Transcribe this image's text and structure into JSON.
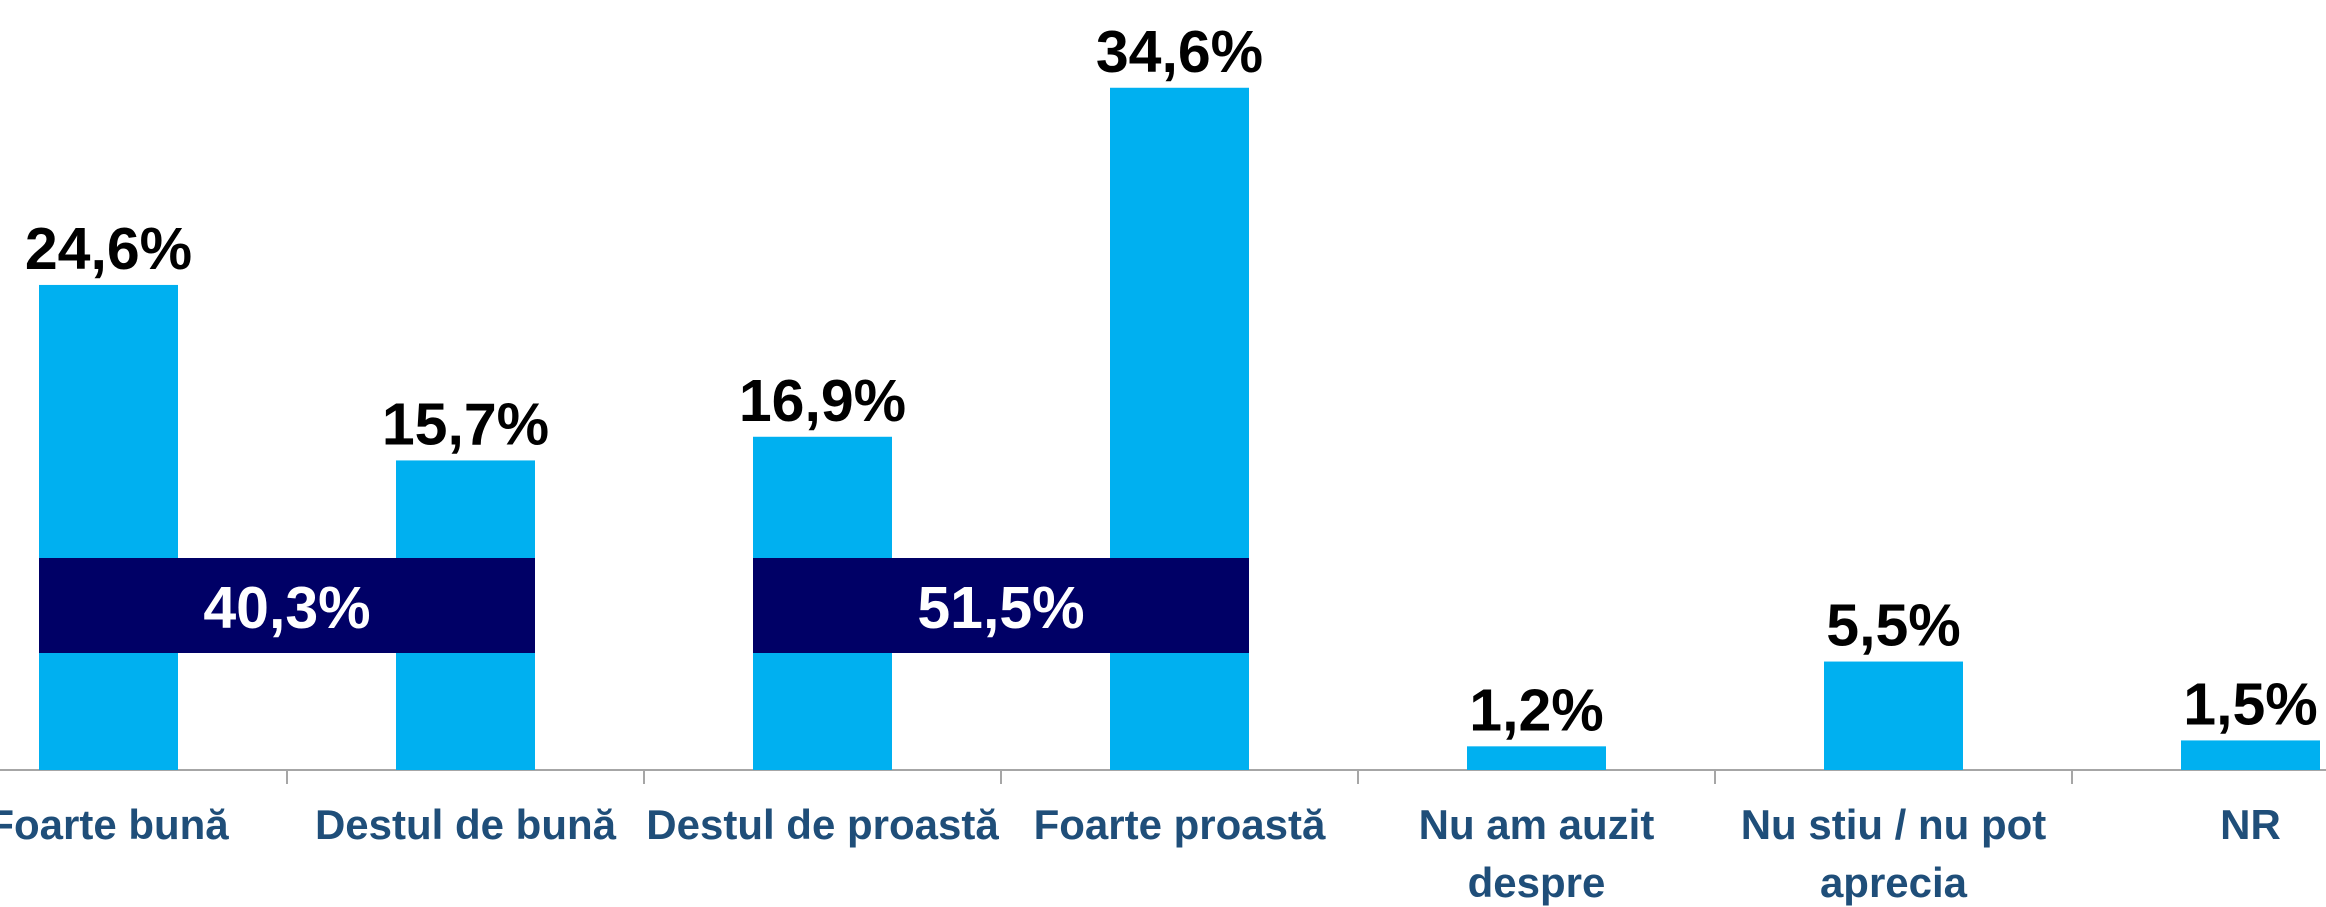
{
  "chart_data": {
    "type": "bar",
    "categories": [
      "Foarte bună",
      "Destul de bună",
      "Destul de proastă",
      "Foarte proastă",
      "Nu am auzit despre",
      "Nu stiu / nu pot aprecia",
      "NR"
    ],
    "values": [
      24.6,
      15.7,
      16.9,
      34.6,
      1.2,
      5.5,
      1.5
    ],
    "value_labels": [
      "24,6%",
      "15,7%",
      "16,9%",
      "34,6%",
      "1,2%",
      "5,5%",
      "1,5%"
    ],
    "color": "#00b0f0",
    "ylim": [
      0,
      39
    ],
    "groups": [
      {
        "members": [
          0,
          1
        ],
        "value": 40.3,
        "label": "40,3%",
        "color": "#000066"
      },
      {
        "members": [
          2,
          3
        ],
        "value": 51.5,
        "label": "51,5%",
        "color": "#000066"
      }
    ]
  }
}
